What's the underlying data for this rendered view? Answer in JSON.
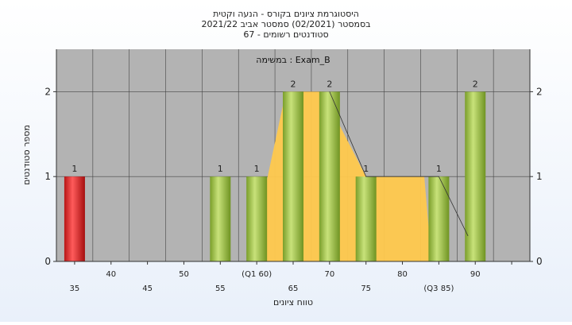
{
  "chart_data": {
    "type": "bar",
    "title_lines": [
      "היסטוגרמת ציונים בקורס - הנעה וקטית",
      "בסמסטר  (02/2021)  סמסטר אביב 2021/22",
      "סטודנטים רשומים - 67"
    ],
    "subtitle": "במשימה : Exam_B",
    "xlabel": "טווח ציונים",
    "ylabel": "מספר סטודנטים",
    "ylim": [
      0,
      2.5
    ],
    "y_ticks": [
      "0",
      "1",
      "2"
    ],
    "x_ticks_top": [
      "40",
      "50",
      "(Q1 60)",
      "70",
      "80",
      "90"
    ],
    "x_ticks_bottom": [
      "35",
      "45",
      "55",
      "65",
      "75",
      "(Q3 85)"
    ],
    "bars": [
      {
        "x": 35,
        "value": 1,
        "label": "1",
        "color": "#e02a2a"
      },
      {
        "x": 55,
        "value": 1,
        "label": "1",
        "color": "#9bc447"
      },
      {
        "x": 60,
        "value": 1,
        "label": "1",
        "color": "#9bc447"
      },
      {
        "x": 65,
        "value": 2,
        "label": "2",
        "color": "#9bc447"
      },
      {
        "x": 70,
        "value": 2,
        "label": "2",
        "color": "#9bc447"
      },
      {
        "x": 75,
        "value": 1,
        "label": "1",
        "color": "#9bc447"
      },
      {
        "x": 85,
        "value": 1,
        "label": "1",
        "color": "#9bc447"
      },
      {
        "x": 90,
        "value": 2,
        "label": "2",
        "color": "#9bc447"
      }
    ],
    "distribution_band": {
      "color": "#ffc94d",
      "points": [
        [
          59,
          0
        ],
        [
          64,
          2
        ],
        [
          69,
          2
        ],
        [
          75,
          1
        ],
        [
          83,
          1
        ],
        [
          84,
          0
        ]
      ]
    },
    "trend_line": {
      "color": "#333333",
      "points": [
        [
          70,
          2
        ],
        [
          75,
          1
        ],
        [
          85,
          1
        ],
        [
          89,
          0.3
        ]
      ]
    },
    "colors": {
      "plot_background": "#b3b3b3",
      "grid": "#444444",
      "axis": "#333333"
    },
    "grid": true
  }
}
